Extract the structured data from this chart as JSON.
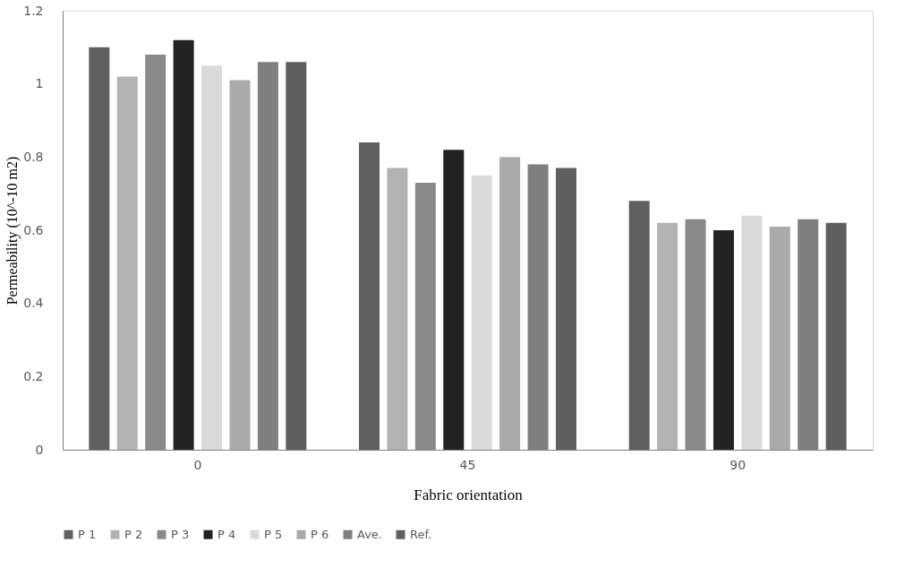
{
  "chart_data": {
    "type": "bar",
    "xlabel": "Fabric orientation",
    "ylabel": "Permeability (10^-10  m2)",
    "categories": [
      "0",
      "45",
      "90"
    ],
    "series": [
      {
        "name": "P 1",
        "color": "#606060",
        "values": [
          1.1,
          0.84,
          0.68
        ]
      },
      {
        "name": "P 2",
        "color": "#b3b3b3",
        "values": [
          1.02,
          0.77,
          0.62
        ]
      },
      {
        "name": "P 3",
        "color": "#898989",
        "values": [
          1.08,
          0.73,
          0.63
        ]
      },
      {
        "name": "P 4",
        "color": "#222222",
        "values": [
          1.12,
          0.82,
          0.6
        ]
      },
      {
        "name": "P 5",
        "color": "#dadada",
        "values": [
          1.05,
          0.75,
          0.64
        ]
      },
      {
        "name": "P 6",
        "color": "#aaaaaa",
        "values": [
          1.01,
          0.8,
          0.61
        ]
      },
      {
        "name": "Ave.",
        "color": "#7f7f7f",
        "values": [
          1.06,
          0.78,
          0.63
        ]
      },
      {
        "name": "Ref.",
        "color": "#5f5f5f",
        "values": [
          1.06,
          0.77,
          0.62
        ]
      }
    ],
    "ylim": [
      0,
      1.2
    ],
    "yticks": [
      0,
      0.2,
      0.4,
      0.6,
      0.8,
      1,
      1.2
    ],
    "grid": false,
    "legend": "bottom"
  }
}
